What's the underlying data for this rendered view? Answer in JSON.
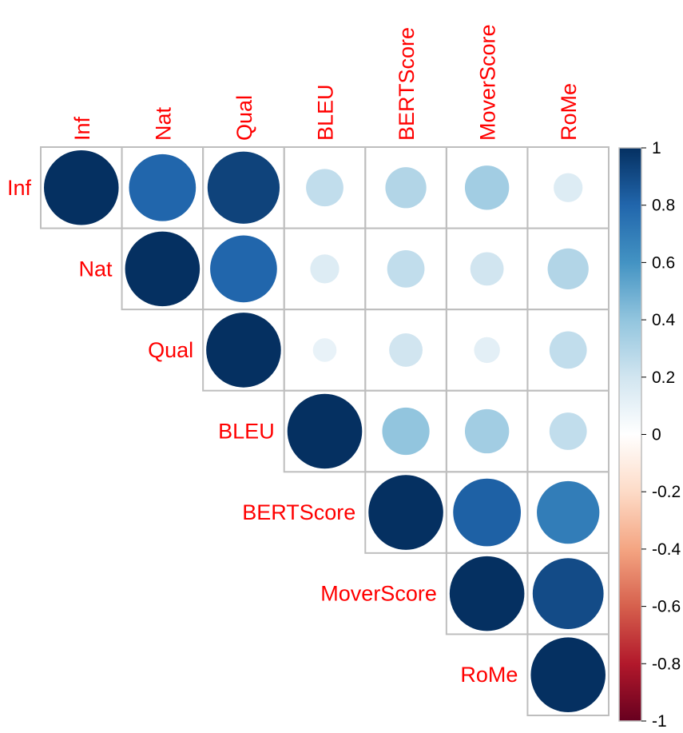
{
  "chart_data": {
    "type": "heatmap",
    "style": "correlation-circles-upper-triangle",
    "variables": [
      "Inf",
      "Nat",
      "Qual",
      "BLEU",
      "BERTScore",
      "MoverScore",
      "RoMe"
    ],
    "matrix": [
      [
        1.0,
        0.8,
        0.93,
        0.25,
        0.3,
        0.35,
        0.15
      ],
      [
        0.8,
        1.0,
        0.8,
        0.15,
        0.25,
        0.2,
        0.3
      ],
      [
        0.93,
        0.8,
        1.0,
        0.1,
        0.2,
        0.12,
        0.25
      ],
      [
        0.25,
        0.15,
        0.1,
        1.0,
        0.4,
        0.35,
        0.25
      ],
      [
        0.3,
        0.25,
        0.2,
        0.4,
        1.0,
        0.82,
        0.7
      ],
      [
        0.35,
        0.2,
        0.12,
        0.35,
        0.82,
        1.0,
        0.9
      ],
      [
        0.15,
        0.3,
        0.25,
        0.25,
        0.7,
        0.9,
        1.0
      ]
    ],
    "colorbar": {
      "range": [
        -1,
        1
      ],
      "ticks": [
        "1",
        "0.8",
        "0.6",
        "0.4",
        "0.2",
        "0",
        "-0.2",
        "-0.4",
        "-0.6",
        "-0.8",
        "-1"
      ],
      "colors": [
        "#67001F",
        "#B2182B",
        "#D6604D",
        "#F4A582",
        "#FDDBC7",
        "#FFFFFF",
        "#D1E5F0",
        "#92C5DE",
        "#4393C3",
        "#2166AC",
        "#053061"
      ]
    },
    "label_color": "#FF0000",
    "grid_color": "#BEBEBE",
    "legend": "right"
  }
}
